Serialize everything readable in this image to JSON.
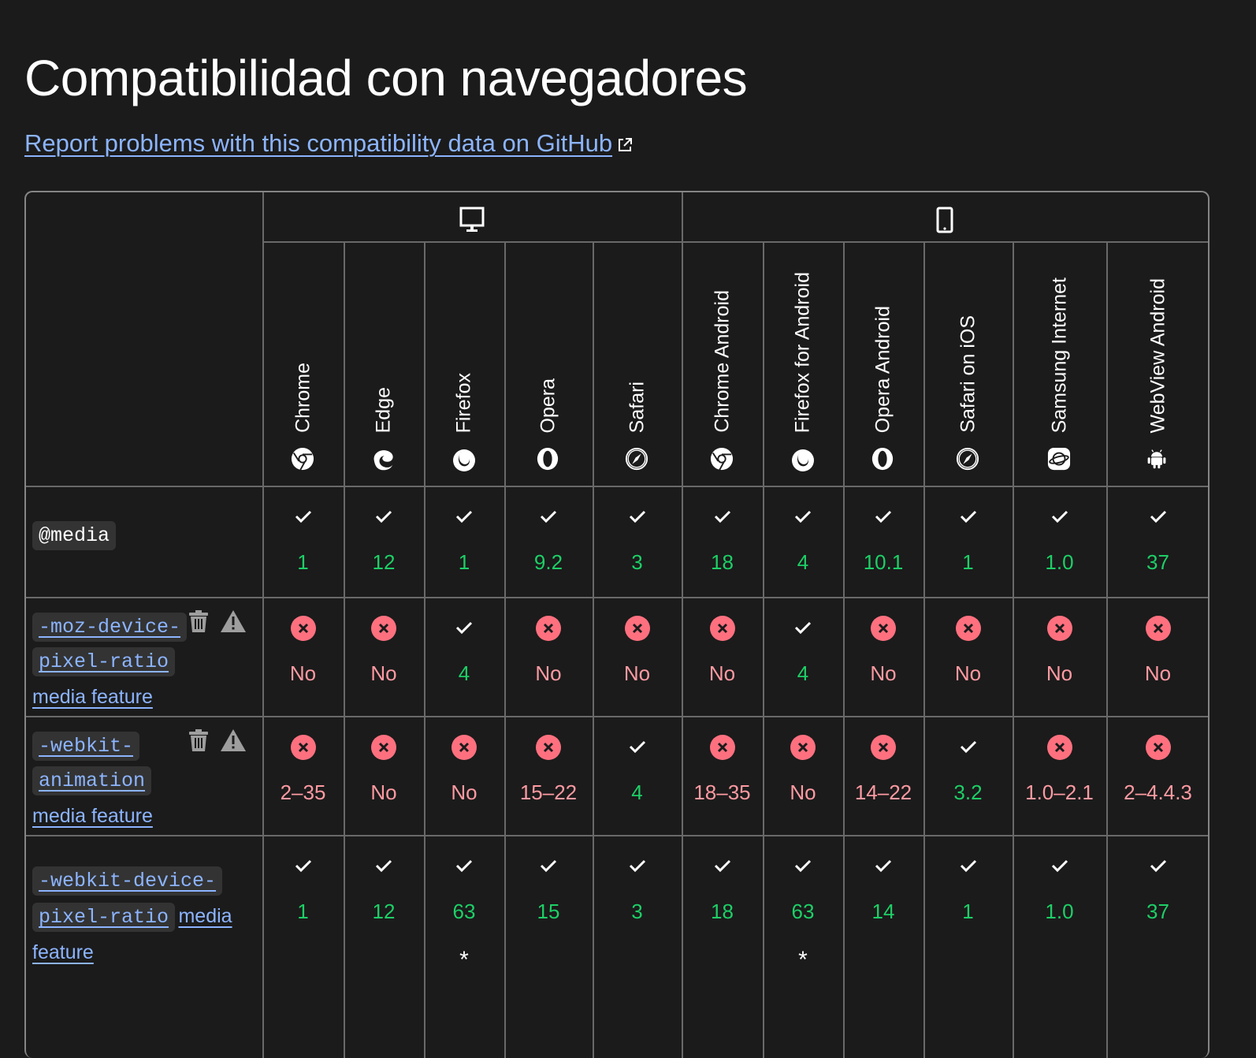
{
  "page": {
    "title": "Compatibilidad con navegadores",
    "report_link": "Report problems with this compatibility data on GitHub",
    "report_link_icon": "external-link-icon"
  },
  "colors": {
    "background": "#1b1b1b",
    "border": "#696969",
    "supported": "#1dcf66",
    "unsupported": "#ff9aa2",
    "unsupported_badge": "#ff707f",
    "link": "#8cb4ff",
    "code_bg": "#333333"
  },
  "platforms": [
    {
      "name": "desktop",
      "icon": "desktop-icon"
    },
    {
      "name": "mobile",
      "icon": "mobile-icon"
    }
  ],
  "browsers": [
    {
      "name": "Chrome",
      "icon": "chrome-icon",
      "platform": "desktop"
    },
    {
      "name": "Edge",
      "icon": "edge-icon",
      "platform": "desktop"
    },
    {
      "name": "Firefox",
      "icon": "firefox-icon",
      "platform": "desktop"
    },
    {
      "name": "Opera",
      "icon": "opera-icon",
      "platform": "desktop"
    },
    {
      "name": "Safari",
      "icon": "safari-icon",
      "platform": "desktop"
    },
    {
      "name": "Chrome Android",
      "icon": "chrome-icon",
      "platform": "mobile"
    },
    {
      "name": "Firefox for Android",
      "icon": "firefox-icon",
      "platform": "mobile"
    },
    {
      "name": "Opera Android",
      "icon": "opera-icon",
      "platform": "mobile"
    },
    {
      "name": "Safari on iOS",
      "icon": "safari-icon",
      "platform": "mobile"
    },
    {
      "name": "Samsung Internet",
      "icon": "samsung-internet-icon",
      "platform": "mobile"
    },
    {
      "name": "WebView Android",
      "icon": "android-icon",
      "platform": "mobile"
    }
  ],
  "rows": [
    {
      "feature_code": "@media",
      "feature_suffix": "",
      "is_link": false,
      "deprecated": false,
      "non_standard": false,
      "support": [
        {
          "s": "yes",
          "v": "1"
        },
        {
          "s": "yes",
          "v": "12"
        },
        {
          "s": "yes",
          "v": "1"
        },
        {
          "s": "yes",
          "v": "9.2"
        },
        {
          "s": "yes",
          "v": "3"
        },
        {
          "s": "yes",
          "v": "18"
        },
        {
          "s": "yes",
          "v": "4"
        },
        {
          "s": "yes",
          "v": "10.1"
        },
        {
          "s": "yes",
          "v": "1"
        },
        {
          "s": "yes",
          "v": "1.0"
        },
        {
          "s": "yes",
          "v": "37"
        }
      ]
    },
    {
      "feature_code_lines": [
        "-moz-device-",
        "pixel-ratio"
      ],
      "feature_suffix": "media feature",
      "is_link": true,
      "deprecated": true,
      "non_standard": true,
      "support": [
        {
          "s": "no",
          "v": "No"
        },
        {
          "s": "no",
          "v": "No"
        },
        {
          "s": "yes",
          "v": "4"
        },
        {
          "s": "no",
          "v": "No"
        },
        {
          "s": "no",
          "v": "No"
        },
        {
          "s": "no",
          "v": "No"
        },
        {
          "s": "yes",
          "v": "4"
        },
        {
          "s": "no",
          "v": "No"
        },
        {
          "s": "no",
          "v": "No"
        },
        {
          "s": "no",
          "v": "No"
        },
        {
          "s": "no",
          "v": "No"
        }
      ]
    },
    {
      "feature_code_lines": [
        "-webkit-",
        "animation"
      ],
      "feature_suffix": "media feature",
      "is_link": true,
      "deprecated": true,
      "non_standard": true,
      "support": [
        {
          "s": "no",
          "v": "2–35"
        },
        {
          "s": "no",
          "v": "No"
        },
        {
          "s": "no",
          "v": "No"
        },
        {
          "s": "no",
          "v": "15–22"
        },
        {
          "s": "yes",
          "v": "4"
        },
        {
          "s": "no",
          "v": "18–35"
        },
        {
          "s": "no",
          "v": "No"
        },
        {
          "s": "no",
          "v": "14–22"
        },
        {
          "s": "yes",
          "v": "3.2"
        },
        {
          "s": "no",
          "v": "1.0–2.1"
        },
        {
          "s": "no",
          "v": "2–4.4.3"
        }
      ]
    },
    {
      "feature_code_lines": [
        "-webkit-device-",
        "pixel-ratio"
      ],
      "feature_suffix": "media",
      "feature_suffix_2": "feature",
      "is_link": true,
      "deprecated": false,
      "non_standard": false,
      "support": [
        {
          "s": "yes",
          "v": "1"
        },
        {
          "s": "yes",
          "v": "12"
        },
        {
          "s": "yes",
          "v": "63",
          "note": "*"
        },
        {
          "s": "yes",
          "v": "15"
        },
        {
          "s": "yes",
          "v": "3"
        },
        {
          "s": "yes",
          "v": "18"
        },
        {
          "s": "yes",
          "v": "63",
          "note": "*"
        },
        {
          "s": "yes",
          "v": "14"
        },
        {
          "s": "yes",
          "v": "1"
        },
        {
          "s": "yes",
          "v": "1.0"
        },
        {
          "s": "yes",
          "v": "37"
        }
      ]
    }
  ]
}
